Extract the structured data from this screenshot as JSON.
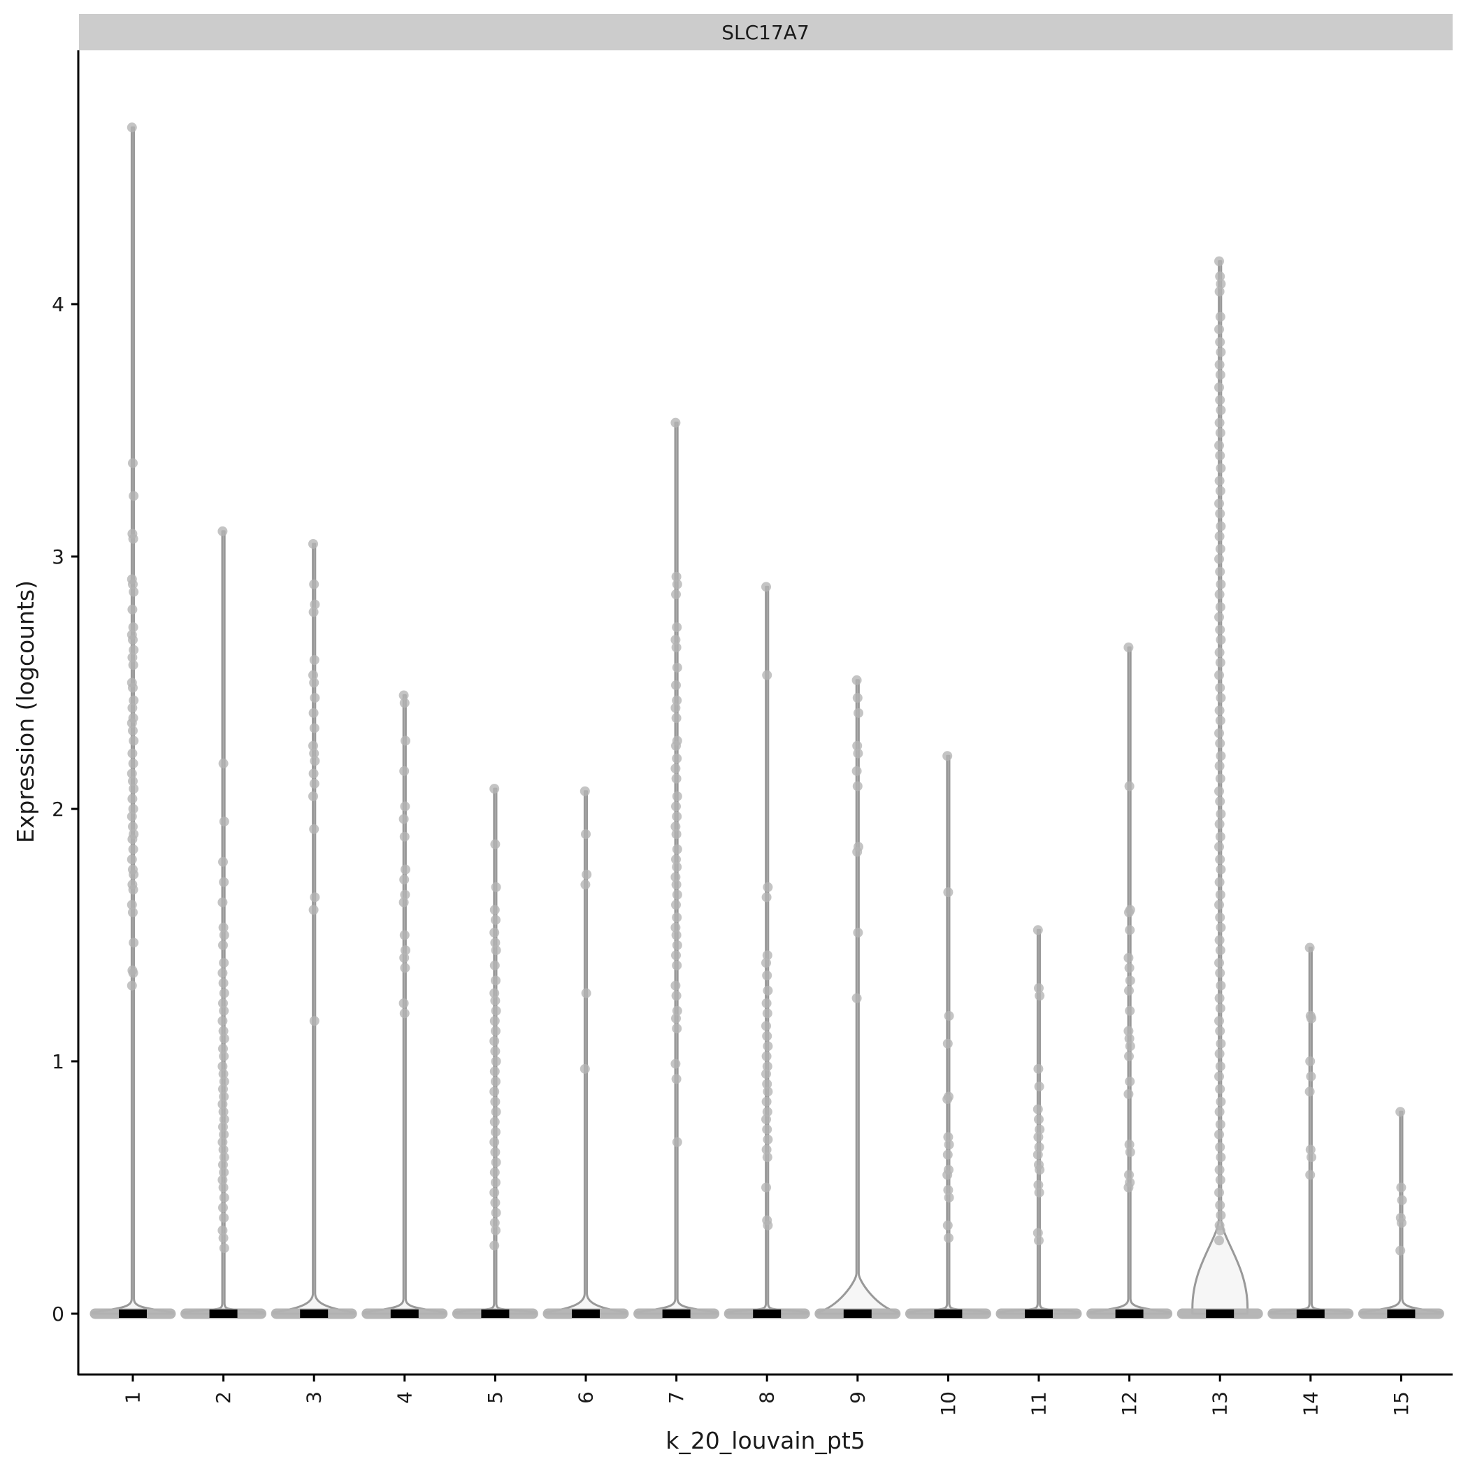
{
  "chart_data": {
    "type": "violin",
    "facet_title": "SLC17A7",
    "xlabel": "k_20_louvain_pt5",
    "ylabel": "Expression (logcounts)",
    "ylim": [
      -0.24,
      4.9
    ],
    "y_ticks": [
      0,
      1,
      2,
      3,
      4
    ],
    "grid": false,
    "legend": "none",
    "colors": {
      "violin_stroke": "#999999",
      "violin_fill": "#f6f6f6",
      "points": "#b3b3b3",
      "median": "#000000",
      "strip": "#cccccc",
      "axis": "#000000"
    },
    "categories": [
      "1",
      "2",
      "3",
      "4",
      "5",
      "6",
      "7",
      "8",
      "9",
      "10",
      "11",
      "12",
      "13",
      "14",
      "15"
    ],
    "max_values": [
      4.7,
      3.1,
      3.05,
      2.45,
      2.08,
      2.07,
      3.53,
      2.88,
      2.51,
      2.21,
      1.52,
      2.64,
      4.17,
      1.45,
      0.8
    ],
    "median_values": [
      0,
      0,
      0,
      0,
      0,
      0,
      0,
      0,
      0,
      0,
      0,
      0,
      0,
      0,
      0
    ],
    "points": [
      [
        4.7,
        3.37,
        3.24,
        3.09,
        3.07,
        2.91,
        2.89,
        2.86,
        2.79,
        2.72,
        2.69,
        2.67,
        2.63,
        2.6,
        2.57,
        2.5,
        2.48,
        2.43,
        2.4,
        2.36,
        2.34,
        2.31,
        2.27,
        2.22,
        2.18,
        2.14,
        2.11,
        2.08,
        2.04,
        2.0,
        1.97,
        1.93,
        1.9,
        1.88,
        1.84,
        1.8,
        1.76,
        1.74,
        1.7,
        1.68,
        1.62,
        1.59,
        1.47,
        1.36,
        1.35,
        1.3
      ],
      [
        3.1,
        2.18,
        1.95,
        1.79,
        1.71,
        1.63,
        1.53,
        1.5,
        1.46,
        1.39,
        1.35,
        1.31,
        1.27,
        1.23,
        1.2,
        1.16,
        1.12,
        1.09,
        1.05,
        1.02,
        0.98,
        0.95,
        0.92,
        0.89,
        0.86,
        0.83,
        0.8,
        0.77,
        0.74,
        0.71,
        0.68,
        0.65,
        0.62,
        0.59,
        0.56,
        0.53,
        0.5,
        0.46,
        0.42,
        0.38,
        0.33,
        0.3,
        0.26
      ],
      [
        3.05,
        2.89,
        2.81,
        2.78,
        2.59,
        2.53,
        2.5,
        2.44,
        2.38,
        2.32,
        2.25,
        2.22,
        2.19,
        2.14,
        2.1,
        2.05,
        1.92,
        1.65,
        1.6,
        1.16
      ],
      [
        2.45,
        2.42,
        2.27,
        2.15,
        2.01,
        1.96,
        1.89,
        1.76,
        1.72,
        1.66,
        1.63,
        1.5,
        1.44,
        1.41,
        1.37,
        1.23,
        1.19
      ],
      [
        2.08,
        1.86,
        1.69,
        1.6,
        1.56,
        1.51,
        1.47,
        1.44,
        1.38,
        1.32,
        1.27,
        1.24,
        1.2,
        1.16,
        1.12,
        1.08,
        1.04,
        1.0,
        0.96,
        0.92,
        0.88,
        0.84,
        0.8,
        0.76,
        0.72,
        0.68,
        0.64,
        0.6,
        0.56,
        0.52,
        0.48,
        0.44,
        0.4,
        0.36,
        0.33,
        0.27
      ],
      [
        2.07,
        1.9,
        1.74,
        1.7,
        1.27,
        0.97
      ],
      [
        3.53,
        2.92,
        2.89,
        2.85,
        2.72,
        2.67,
        2.64,
        2.56,
        2.49,
        2.43,
        2.4,
        2.36,
        2.27,
        2.25,
        2.2,
        2.16,
        2.12,
        2.05,
        2.01,
        1.97,
        1.93,
        1.9,
        1.84,
        1.8,
        1.77,
        1.73,
        1.7,
        1.66,
        1.62,
        1.57,
        1.53,
        1.5,
        1.46,
        1.42,
        1.38,
        1.3,
        1.26,
        1.2,
        1.17,
        1.13,
        0.99,
        0.93,
        0.68
      ],
      [
        2.88,
        2.53,
        1.69,
        1.65,
        1.42,
        1.39,
        1.34,
        1.28,
        1.23,
        1.19,
        1.14,
        1.1,
        1.06,
        1.02,
        0.98,
        0.95,
        0.91,
        0.88,
        0.84,
        0.8,
        0.77,
        0.73,
        0.69,
        0.65,
        0.62,
        0.5,
        0.37,
        0.35
      ],
      [
        2.51,
        2.44,
        2.38,
        2.25,
        2.22,
        2.15,
        2.09,
        1.85,
        1.83,
        1.51,
        1.25
      ],
      [
        2.21,
        1.67,
        1.18,
        1.07,
        0.86,
        0.85,
        0.7,
        0.67,
        0.63,
        0.57,
        0.55,
        0.49,
        0.46,
        0.35,
        0.3
      ],
      [
        1.52,
        1.29,
        1.26,
        0.97,
        0.9,
        0.81,
        0.77,
        0.73,
        0.7,
        0.66,
        0.63,
        0.59,
        0.57,
        0.51,
        0.48,
        0.32,
        0.29
      ],
      [
        2.64,
        2.09,
        1.6,
        1.59,
        1.52,
        1.41,
        1.37,
        1.32,
        1.28,
        1.2,
        1.12,
        1.09,
        1.06,
        1.02,
        0.92,
        0.87,
        0.67,
        0.64,
        0.55,
        0.52,
        0.5
      ],
      [
        4.17,
        4.11,
        4.08,
        4.05,
        3.95,
        3.9,
        3.85,
        3.81,
        3.76,
        3.72,
        3.67,
        3.62,
        3.58,
        3.53,
        3.49,
        3.44,
        3.4,
        3.35,
        3.3,
        3.26,
        3.21,
        3.17,
        3.12,
        3.08,
        3.03,
        2.99,
        2.94,
        2.89,
        2.85,
        2.8,
        2.76,
        2.71,
        2.67,
        2.62,
        2.58,
        2.53,
        2.48,
        2.44,
        2.39,
        2.35,
        2.3,
        2.26,
        2.21,
        2.17,
        2.12,
        2.07,
        2.03,
        1.98,
        1.94,
        1.89,
        1.85,
        1.8,
        1.76,
        1.71,
        1.66,
        1.62,
        1.57,
        1.53,
        1.48,
        1.44,
        1.39,
        1.35,
        1.3,
        1.25,
        1.21,
        1.16,
        1.12,
        1.07,
        1.03,
        0.98,
        0.94,
        0.89,
        0.84,
        0.8,
        0.75,
        0.71,
        0.66,
        0.62,
        0.57,
        0.53,
        0.48,
        0.43,
        0.39,
        0.35,
        0.33,
        0.29
      ],
      [
        1.45,
        1.18,
        1.17,
        1.0,
        0.94,
        0.88,
        0.65,
        0.62,
        0.55
      ],
      [
        0.8,
        0.5,
        0.45,
        0.38,
        0.36,
        0.25
      ]
    ],
    "density_at_zero_width": [
      0.06,
      0.04,
      0.08,
      0.06,
      0.04,
      0.08,
      0.06,
      0.04,
      0.16,
      0.04,
      0.04,
      0.06,
      0.38,
      0.04,
      0.06
    ]
  }
}
